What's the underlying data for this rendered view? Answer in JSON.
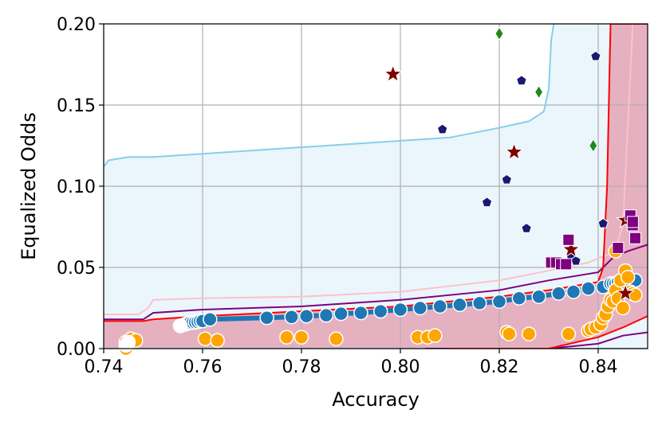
{
  "chart_data": {
    "type": "scatter",
    "xlabel": "Accuracy",
    "ylabel": "Equalized Odds",
    "xlim": [
      0.74,
      0.85
    ],
    "ylim": [
      0.0,
      0.2
    ],
    "x_ticks": [
      "0.74",
      "0.76",
      "0.78",
      "0.80",
      "0.82",
      "0.84"
    ],
    "y_ticks": [
      "0.00",
      "0.05",
      "0.10",
      "0.15",
      "0.20"
    ],
    "grid": true,
    "colors": {
      "skyblue": "#87ceeb",
      "skyblue_fill": "#eaf6fb",
      "pink": "#ffc0cb",
      "purple": "#800080",
      "red": "#ff0000",
      "crimson_fill": "#e5b1c1",
      "navy": "#191970",
      "green": "#1e8a1e",
      "darkred": "#800000",
      "orange": "#ffa500",
      "steelblue": "#1f77b4"
    },
    "bands": [
      {
        "color": "skyblue",
        "fill": "skyblue_fill",
        "upper": [
          [
            0.74,
            0.112
          ],
          [
            0.741,
            0.116
          ],
          [
            0.745,
            0.118
          ],
          [
            0.75,
            0.118
          ],
          [
            0.76,
            0.12
          ],
          [
            0.77,
            0.122
          ],
          [
            0.78,
            0.124
          ],
          [
            0.79,
            0.126
          ],
          [
            0.8,
            0.128
          ],
          [
            0.81,
            0.13
          ],
          [
            0.82,
            0.136
          ],
          [
            0.826,
            0.14
          ],
          [
            0.829,
            0.146
          ],
          [
            0.83,
            0.16
          ],
          [
            0.8305,
            0.19
          ],
          [
            0.831,
            0.2
          ]
        ],
        "lower": [
          [
            0.74,
            0.0
          ],
          [
            0.85,
            0.0
          ]
        ]
      },
      {
        "color": "pink",
        "fill": null,
        "upper": [
          [
            0.74,
            0.021
          ],
          [
            0.747,
            0.021
          ],
          [
            0.749,
            0.025
          ],
          [
            0.75,
            0.03
          ],
          [
            0.76,
            0.031
          ],
          [
            0.78,
            0.032
          ],
          [
            0.8,
            0.035
          ],
          [
            0.82,
            0.042
          ],
          [
            0.83,
            0.048
          ],
          [
            0.838,
            0.053
          ],
          [
            0.842,
            0.058
          ],
          [
            0.844,
            0.066
          ],
          [
            0.845,
            0.076
          ],
          [
            0.847,
            0.2
          ]
        ]
      },
      {
        "color": "purple",
        "fill": null,
        "upper": [
          [
            0.74,
            0.018
          ],
          [
            0.748,
            0.018
          ],
          [
            0.75,
            0.022
          ],
          [
            0.76,
            0.024
          ],
          [
            0.78,
            0.026
          ],
          [
            0.8,
            0.03
          ],
          [
            0.82,
            0.036
          ],
          [
            0.83,
            0.042
          ],
          [
            0.84,
            0.047
          ],
          [
            0.843,
            0.056
          ],
          [
            0.846,
            0.06
          ],
          [
            0.85,
            0.064
          ]
        ],
        "lower": [
          [
            0.805,
            0.0
          ],
          [
            0.83,
            0.0
          ],
          [
            0.84,
            0.003
          ],
          [
            0.845,
            0.008
          ],
          [
            0.85,
            0.01
          ]
        ]
      },
      {
        "color": "red",
        "fill": "crimson_fill",
        "upper": [
          [
            0.74,
            0.017
          ],
          [
            0.748,
            0.017
          ],
          [
            0.75,
            0.018
          ],
          [
            0.76,
            0.02
          ],
          [
            0.78,
            0.023
          ],
          [
            0.8,
            0.026
          ],
          [
            0.82,
            0.032
          ],
          [
            0.83,
            0.036
          ],
          [
            0.84,
            0.041
          ],
          [
            0.841,
            0.05
          ],
          [
            0.8418,
            0.1
          ],
          [
            0.8425,
            0.2
          ],
          [
            0.85,
            0.2
          ]
        ],
        "lower": [
          [
            0.81,
            0.0
          ],
          [
            0.83,
            0.0
          ],
          [
            0.84,
            0.007
          ],
          [
            0.845,
            0.013
          ],
          [
            0.85,
            0.02
          ]
        ]
      }
    ],
    "series": [
      {
        "marker": "circle",
        "color": "steelblue",
        "connected": true,
        "x": [
          0.7555,
          0.7565,
          0.757,
          0.7575,
          0.758,
          0.7585,
          0.759,
          0.7595,
          0.76,
          0.7615,
          0.773,
          0.778,
          0.781,
          0.785,
          0.788,
          0.792,
          0.796,
          0.8,
          0.804,
          0.808,
          0.812,
          0.816,
          0.82,
          0.824,
          0.828,
          0.832,
          0.835,
          0.838,
          0.841,
          0.8425,
          0.843,
          0.8435,
          0.844,
          0.8445,
          0.845,
          0.8455,
          0.846,
          0.8475
        ],
        "y": [
          0.014,
          0.015,
          0.0155,
          0.016,
          0.016,
          0.0162,
          0.0165,
          0.017,
          0.017,
          0.018,
          0.019,
          0.0195,
          0.02,
          0.0205,
          0.0215,
          0.022,
          0.023,
          0.024,
          0.025,
          0.026,
          0.027,
          0.028,
          0.029,
          0.031,
          0.032,
          0.034,
          0.035,
          0.037,
          0.038,
          0.04,
          0.04,
          0.04,
          0.041,
          0.041,
          0.041,
          0.042,
          0.042,
          0.042
        ]
      },
      {
        "marker": "circle",
        "color": "orange",
        "connected": false,
        "x": [
          0.7445,
          0.7445,
          0.7455,
          0.7465,
          0.7605,
          0.763,
          0.777,
          0.78,
          0.787,
          0.8035,
          0.8055,
          0.807,
          0.8215,
          0.822,
          0.826,
          0.834,
          0.838,
          0.8385,
          0.8395,
          0.8405,
          0.841,
          0.8415,
          0.842,
          0.8425,
          0.843,
          0.8435,
          0.844,
          0.8445,
          0.845,
          0.8455,
          0.846,
          0.8465,
          0.847,
          0.8475,
          0.8435
        ],
        "y": [
          0.0,
          0.004,
          0.006,
          0.005,
          0.006,
          0.005,
          0.007,
          0.007,
          0.006,
          0.007,
          0.007,
          0.008,
          0.01,
          0.009,
          0.009,
          0.009,
          0.011,
          0.012,
          0.013,
          0.015,
          0.019,
          0.021,
          0.026,
          0.03,
          0.029,
          0.036,
          0.031,
          0.042,
          0.025,
          0.048,
          0.044,
          0.035,
          0.034,
          0.033,
          0.06
        ]
      },
      {
        "marker": "circle",
        "color": "white",
        "connected": false,
        "x": [
          0.7445,
          0.745,
          0.7555
        ],
        "y": [
          0.002,
          0.004,
          0.014
        ]
      },
      {
        "marker": "pentagon",
        "color": "navy",
        "connected": false,
        "x": [
          0.8085,
          0.8175,
          0.8215,
          0.8245,
          0.8255,
          0.8345,
          0.8355,
          0.8395,
          0.841
        ],
        "y": [
          0.135,
          0.09,
          0.104,
          0.165,
          0.074,
          0.057,
          0.054,
          0.18,
          0.077
        ]
      },
      {
        "marker": "diamond",
        "color": "green",
        "connected": false,
        "x": [
          0.82,
          0.828,
          0.839
        ],
        "y": [
          0.194,
          0.158,
          0.125
        ]
      },
      {
        "marker": "star",
        "color": "darkred",
        "connected": false,
        "x": [
          0.7985,
          0.823,
          0.8345,
          0.8455,
          0.8455
        ],
        "y": [
          0.169,
          0.121,
          0.061,
          0.079,
          0.034
        ]
      },
      {
        "marker": "square",
        "color": "purple",
        "connected": false,
        "x": [
          0.8305,
          0.8315,
          0.8325,
          0.8335,
          0.834,
          0.844,
          0.8465,
          0.847,
          0.8475,
          0.847
        ],
        "y": [
          0.053,
          0.053,
          0.052,
          0.052,
          0.067,
          0.062,
          0.082,
          0.076,
          0.068,
          0.078
        ]
      }
    ]
  }
}
